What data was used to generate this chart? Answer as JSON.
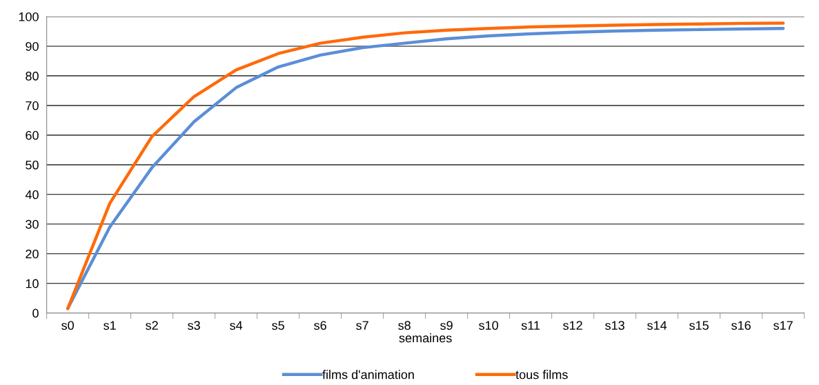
{
  "chart_data": {
    "type": "line",
    "xlabel": "semaines",
    "categories": [
      "s0",
      "s1",
      "s2",
      "s3",
      "s4",
      "s5",
      "s6",
      "s7",
      "s8",
      "s9",
      "s10",
      "s11",
      "s12",
      "s13",
      "s14",
      "s15",
      "s16",
      "s17"
    ],
    "series": [
      {
        "name": "films d'animation",
        "color": "#5b8ed6",
        "values": [
          1.5,
          29,
          49,
          64.5,
          76,
          83,
          87,
          89.5,
          91,
          92.5,
          93.5,
          94.2,
          94.7,
          95.1,
          95.4,
          95.6,
          95.8,
          96
        ]
      },
      {
        "name": "tous films",
        "color": "#ff6a0a",
        "values": [
          1.5,
          37,
          59.5,
          73,
          82,
          87.5,
          91,
          93,
          94.5,
          95.4,
          96,
          96.5,
          96.8,
          97.1,
          97.3,
          97.5,
          97.7,
          97.8
        ]
      }
    ],
    "ylim": [
      0,
      100
    ],
    "yticks": [
      0,
      10,
      20,
      30,
      40,
      50,
      60,
      70,
      80,
      90,
      100
    ],
    "grid": "y",
    "legend": "bottom",
    "marker": "none",
    "line_style": "solid"
  }
}
